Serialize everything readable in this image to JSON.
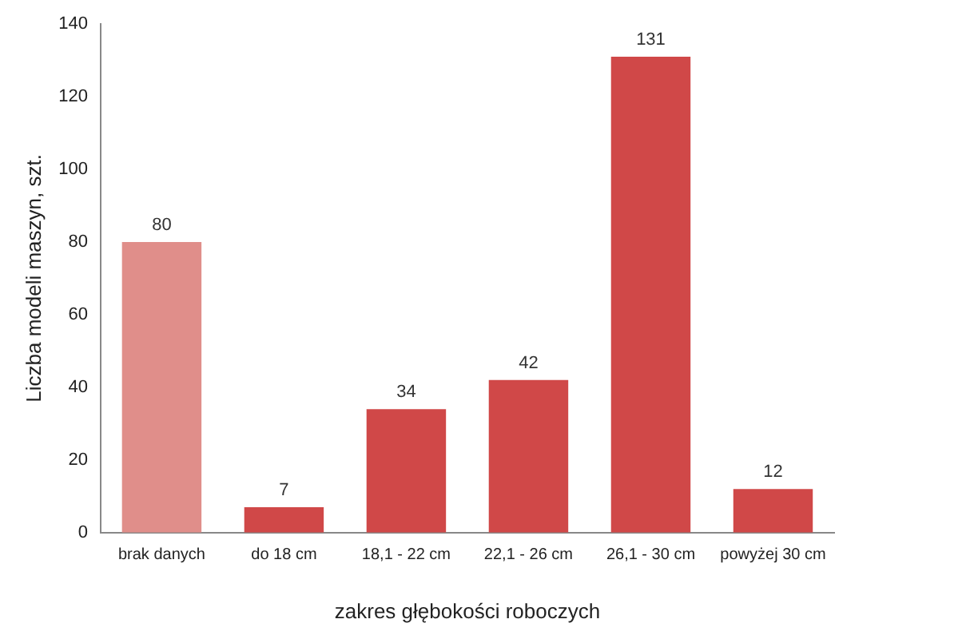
{
  "chart_data": {
    "type": "bar",
    "xlabel": "zakres głębokości roboczych",
    "ylabel": "Liczba modeli maszyn, szt.",
    "categories": [
      "brak danych",
      "do 18 cm",
      "18,1 - 22 cm",
      "22,1 - 26 cm",
      "26,1 - 30 cm",
      "powyżej 30 cm"
    ],
    "values": [
      80,
      7,
      34,
      42,
      131,
      12
    ],
    "colors": [
      "#e08e8a",
      "#d04848",
      "#d04848",
      "#d04848",
      "#d04848",
      "#d04848"
    ],
    "ylim": [
      0,
      140
    ],
    "yticks": [
      0,
      20,
      40,
      60,
      80,
      100,
      120,
      140
    ],
    "grid": false,
    "legend": false,
    "data_labels": true
  }
}
